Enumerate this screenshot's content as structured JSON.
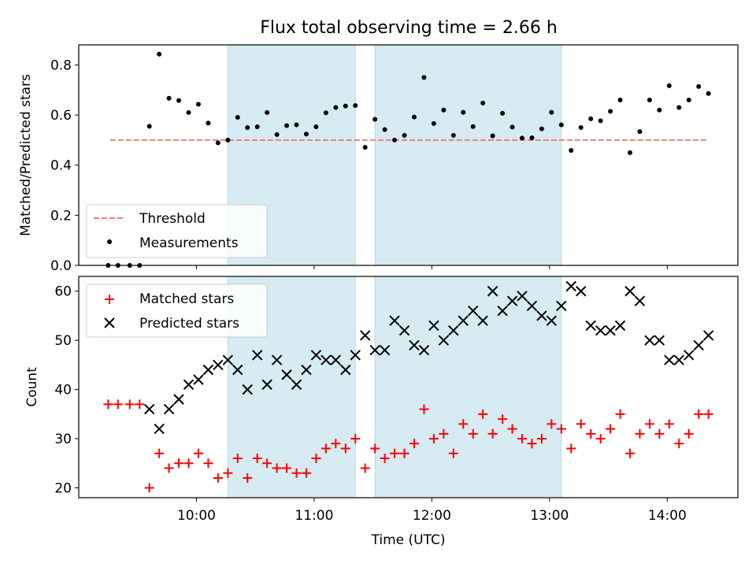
{
  "title": "Flux total observing time = 2.66 h",
  "colors": {
    "shade": "#add8e6",
    "threshold": "#f08080",
    "matched": "#ff0000",
    "predicted": "#000000",
    "measure": "#000000"
  },
  "chart_data": [
    {
      "type": "scatter",
      "ylabel": "Matched/Predicted stars",
      "ylim": [
        0,
        0.88
      ],
      "yticks": [
        0.0,
        0.2,
        0.4,
        0.6,
        0.8
      ],
      "ytick_labels": [
        "0.0",
        "0.2",
        "0.4",
        "0.6",
        "0.8"
      ],
      "xlim": [
        "09:00",
        "14:36"
      ],
      "legend": {
        "placement": "lower-left",
        "entries": [
          "Threshold",
          "Measurements"
        ]
      },
      "threshold": {
        "name": "Threshold",
        "value": 0.5,
        "x": [
          "09:16",
          "14:20"
        ]
      },
      "shaded_intervals": [
        [
          "10:16",
          "11:21"
        ],
        [
          "11:31",
          "13:06"
        ]
      ],
      "series": [
        {
          "name": "Measurements",
          "points": [
            [
              "09:15",
              0.0
            ],
            [
              "09:20",
              0.0
            ],
            [
              "09:26",
              0.0
            ],
            [
              "09:31",
              0.0
            ],
            [
              "09:36",
              0.555
            ],
            [
              "09:41",
              0.843
            ],
            [
              "09:46",
              0.667
            ],
            [
              "09:51",
              0.658
            ],
            [
              "09:56",
              0.61
            ],
            [
              "10:01",
              0.643
            ],
            [
              "10:06",
              0.568
            ],
            [
              "10:11",
              0.489
            ],
            [
              "10:16",
              0.5
            ],
            [
              "10:21",
              0.591
            ],
            [
              "10:26",
              0.55
            ],
            [
              "10:31",
              0.553
            ],
            [
              "10:36",
              0.61
            ],
            [
              "10:41",
              0.522
            ],
            [
              "10:46",
              0.558
            ],
            [
              "10:51",
              0.561
            ],
            [
              "10:56",
              0.524
            ],
            [
              "11:01",
              0.553
            ],
            [
              "11:06",
              0.609
            ],
            [
              "11:11",
              0.63
            ],
            [
              "11:16",
              0.636
            ],
            [
              "11:21",
              0.638
            ],
            [
              "11:26",
              0.471
            ],
            [
              "11:31",
              0.583
            ],
            [
              "11:36",
              0.542
            ],
            [
              "11:41",
              0.5
            ],
            [
              "11:46",
              0.519
            ],
            [
              "11:51",
              0.592
            ],
            [
              "11:56",
              0.75
            ],
            [
              "12:01",
              0.566
            ],
            [
              "12:06",
              0.62
            ],
            [
              "12:11",
              0.519
            ],
            [
              "12:16",
              0.611
            ],
            [
              "12:21",
              0.554
            ],
            [
              "12:26",
              0.648
            ],
            [
              "12:31",
              0.517
            ],
            [
              "12:36",
              0.607
            ],
            [
              "12:41",
              0.552
            ],
            [
              "12:46",
              0.508
            ],
            [
              "12:51",
              0.509
            ],
            [
              "12:56",
              0.545
            ],
            [
              "13:01",
              0.611
            ],
            [
              "13:06",
              0.561
            ],
            [
              "13:11",
              0.459
            ],
            [
              "13:16",
              0.55
            ],
            [
              "13:21",
              0.585
            ],
            [
              "13:26",
              0.577
            ],
            [
              "13:31",
              0.615
            ],
            [
              "13:36",
              0.66
            ],
            [
              "13:41",
              0.45
            ],
            [
              "13:46",
              0.534
            ],
            [
              "13:51",
              0.66
            ],
            [
              "13:56",
              0.62
            ],
            [
              "14:01",
              0.717
            ],
            [
              "14:06",
              0.63
            ],
            [
              "14:11",
              0.66
            ],
            [
              "14:16",
              0.714
            ],
            [
              "14:21",
              0.686
            ]
          ]
        }
      ]
    },
    {
      "type": "scatter",
      "ylabel": "Count",
      "xlabel": "Time (UTC)",
      "ylim": [
        18,
        63
      ],
      "yticks": [
        20,
        30,
        40,
        50,
        60
      ],
      "ytick_labels": [
        "20",
        "30",
        "40",
        "50",
        "60"
      ],
      "xlim": [
        "09:00",
        "14:36"
      ],
      "xticks": [
        "10:00",
        "11:00",
        "12:00",
        "13:00",
        "14:00"
      ],
      "xtick_labels": [
        "10:00",
        "11:00",
        "12:00",
        "13:00",
        "14:00"
      ],
      "legend": {
        "placement": "upper-left",
        "entries": [
          "Matched stars",
          "Predicted stars"
        ]
      },
      "shaded_intervals": [
        [
          "10:16",
          "11:21"
        ],
        [
          "11:31",
          "13:06"
        ]
      ],
      "series": [
        {
          "name": "Matched stars",
          "marker": "plus",
          "points": [
            [
              "09:15",
              37
            ],
            [
              "09:20",
              37
            ],
            [
              "09:26",
              37
            ],
            [
              "09:31",
              37
            ],
            [
              "09:36",
              20
            ],
            [
              "09:41",
              27
            ],
            [
              "09:46",
              24
            ],
            [
              "09:51",
              25
            ],
            [
              "09:56",
              25
            ],
            [
              "10:01",
              27
            ],
            [
              "10:06",
              25
            ],
            [
              "10:11",
              22
            ],
            [
              "10:16",
              23
            ],
            [
              "10:21",
              26
            ],
            [
              "10:26",
              22
            ],
            [
              "10:31",
              26
            ],
            [
              "10:36",
              25
            ],
            [
              "10:41",
              24
            ],
            [
              "10:46",
              24
            ],
            [
              "10:51",
              23
            ],
            [
              "10:56",
              23
            ],
            [
              "11:01",
              26
            ],
            [
              "11:06",
              28
            ],
            [
              "11:11",
              29
            ],
            [
              "11:16",
              28
            ],
            [
              "11:21",
              30
            ],
            [
              "11:26",
              24
            ],
            [
              "11:31",
              28
            ],
            [
              "11:36",
              26
            ],
            [
              "11:41",
              27
            ],
            [
              "11:46",
              27
            ],
            [
              "11:51",
              29
            ],
            [
              "11:56",
              36
            ],
            [
              "12:01",
              30
            ],
            [
              "12:06",
              31
            ],
            [
              "12:11",
              27
            ],
            [
              "12:16",
              33
            ],
            [
              "12:21",
              31
            ],
            [
              "12:26",
              35
            ],
            [
              "12:31",
              31
            ],
            [
              "12:36",
              34
            ],
            [
              "12:41",
              32
            ],
            [
              "12:46",
              30
            ],
            [
              "12:51",
              29
            ],
            [
              "12:56",
              30
            ],
            [
              "13:01",
              33
            ],
            [
              "13:06",
              32
            ],
            [
              "13:11",
              28
            ],
            [
              "13:16",
              33
            ],
            [
              "13:21",
              31
            ],
            [
              "13:26",
              30
            ],
            [
              "13:31",
              32
            ],
            [
              "13:36",
              35
            ],
            [
              "13:41",
              27
            ],
            [
              "13:46",
              31
            ],
            [
              "13:51",
              33
            ],
            [
              "13:56",
              31
            ],
            [
              "14:01",
              33
            ],
            [
              "14:06",
              29
            ],
            [
              "14:11",
              31
            ],
            [
              "14:16",
              35
            ],
            [
              "14:21",
              35
            ]
          ]
        },
        {
          "name": "Predicted stars",
          "marker": "x",
          "points": [
            [
              "09:36",
              36
            ],
            [
              "09:41",
              32
            ],
            [
              "09:46",
              36
            ],
            [
              "09:51",
              38
            ],
            [
              "09:56",
              41
            ],
            [
              "10:01",
              42
            ],
            [
              "10:06",
              44
            ],
            [
              "10:11",
              45
            ],
            [
              "10:16",
              46
            ],
            [
              "10:21",
              44
            ],
            [
              "10:26",
              40
            ],
            [
              "10:31",
              47
            ],
            [
              "10:36",
              41
            ],
            [
              "10:41",
              46
            ],
            [
              "10:46",
              43
            ],
            [
              "10:51",
              41
            ],
            [
              "10:56",
              44
            ],
            [
              "11:01",
              47
            ],
            [
              "11:06",
              46
            ],
            [
              "11:11",
              46
            ],
            [
              "11:16",
              44
            ],
            [
              "11:21",
              47
            ],
            [
              "11:26",
              51
            ],
            [
              "11:31",
              48
            ],
            [
              "11:36",
              48
            ],
            [
              "11:41",
              54
            ],
            [
              "11:46",
              52
            ],
            [
              "11:51",
              49
            ],
            [
              "11:56",
              48
            ],
            [
              "12:01",
              53
            ],
            [
              "12:06",
              50
            ],
            [
              "12:11",
              52
            ],
            [
              "12:16",
              54
            ],
            [
              "12:21",
              56
            ],
            [
              "12:26",
              54
            ],
            [
              "12:31",
              60
            ],
            [
              "12:36",
              56
            ],
            [
              "12:41",
              58
            ],
            [
              "12:46",
              59
            ],
            [
              "12:51",
              57
            ],
            [
              "12:56",
              55
            ],
            [
              "13:01",
              54
            ],
            [
              "13:06",
              57
            ],
            [
              "13:11",
              61
            ],
            [
              "13:16",
              60
            ],
            [
              "13:21",
              53
            ],
            [
              "13:26",
              52
            ],
            [
              "13:31",
              52
            ],
            [
              "13:36",
              53
            ],
            [
              "13:41",
              60
            ],
            [
              "13:46",
              58
            ],
            [
              "13:51",
              50
            ],
            [
              "13:56",
              50
            ],
            [
              "14:01",
              46
            ],
            [
              "14:06",
              46
            ],
            [
              "14:11",
              47
            ],
            [
              "14:16",
              49
            ],
            [
              "14:21",
              51
            ]
          ]
        }
      ]
    }
  ]
}
